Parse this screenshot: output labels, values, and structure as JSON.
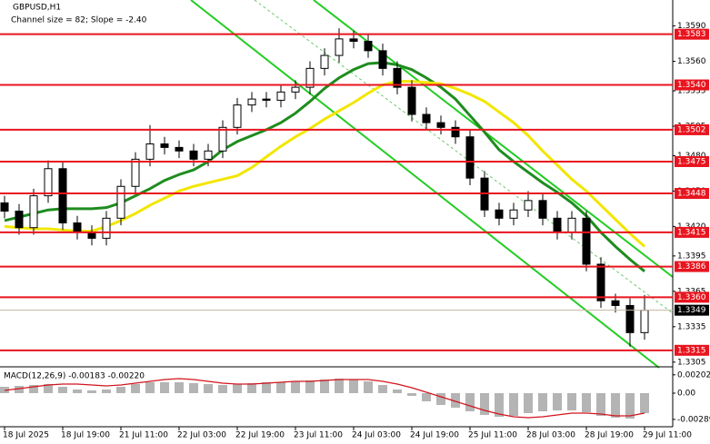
{
  "chart_data": [
    {
      "type": "candlestick",
      "title": "GBPUSD,H1",
      "subtitle": "Channel size = 82; Slope = -2.40",
      "categories": [
        "18 Jul 2025",
        null,
        null,
        null,
        "18 Jul 19:00",
        null,
        null,
        null,
        "21 Jul 11:00",
        null,
        null,
        null,
        "22 Jul 03:00",
        null,
        null,
        null,
        "22 Jul 19:00",
        null,
        null,
        null,
        "23 Jul 11:00",
        null,
        null,
        null,
        "24 Jul 03:00",
        null,
        null,
        null,
        "24 Jul 19:00",
        null,
        null,
        null,
        "25 Jul 11:00",
        null,
        null,
        null,
        "28 Jul 03:00",
        null,
        null,
        null,
        "28 Jul 19:00",
        null,
        null,
        null,
        "29 Jul 11:00"
      ],
      "open": [
        1.344,
        1.3433,
        1.3419,
        1.3446,
        1.3469,
        1.3423,
        1.3415,
        1.341,
        1.3427,
        1.3454,
        1.3477,
        1.349,
        1.3487,
        1.3484,
        1.3477,
        1.3484,
        1.3504,
        1.3523,
        1.3528,
        1.3527,
        1.3534,
        1.3538,
        1.3554,
        1.3565,
        1.3579,
        1.3577,
        1.3569,
        1.3554,
        1.3538,
        1.3515,
        1.3508,
        1.3504,
        1.3496,
        1.3461,
        1.3434,
        1.3427,
        1.3434,
        1.3442,
        1.3427,
        1.3415,
        1.3427,
        1.3388,
        1.3357,
        1.3353,
        1.333
      ],
      "high": [
        1.3446,
        1.3439,
        1.3452,
        1.3476,
        1.3475,
        1.3429,
        1.3421,
        1.3433,
        1.346,
        1.3483,
        1.3506,
        1.3496,
        1.3493,
        1.349,
        1.349,
        1.351,
        1.3529,
        1.3534,
        1.3534,
        1.354,
        1.3544,
        1.356,
        1.3571,
        1.3588,
        1.3586,
        1.3583,
        1.3575,
        1.356,
        1.3544,
        1.3521,
        1.3514,
        1.351,
        1.3502,
        1.3467,
        1.344,
        1.344,
        1.345,
        1.3448,
        1.3433,
        1.3433,
        1.3433,
        1.3394,
        1.3363,
        1.3359,
        1.3362
      ],
      "low": [
        1.3427,
        1.3413,
        1.3413,
        1.344,
        1.3417,
        1.3409,
        1.3404,
        1.3404,
        1.3421,
        1.3448,
        1.3471,
        1.3481,
        1.3478,
        1.3471,
        1.3471,
        1.3478,
        1.3498,
        1.3517,
        1.3521,
        1.3521,
        1.3528,
        1.3532,
        1.3548,
        1.3559,
        1.3571,
        1.3563,
        1.3548,
        1.3532,
        1.3509,
        1.3502,
        1.3498,
        1.349,
        1.3455,
        1.3428,
        1.3421,
        1.3421,
        1.3428,
        1.3421,
        1.3409,
        1.3409,
        1.3382,
        1.3351,
        1.3347,
        1.3318,
        1.3324
      ],
      "close": [
        1.3433,
        1.3419,
        1.3446,
        1.3469,
        1.3423,
        1.3415,
        1.341,
        1.3427,
        1.3454,
        1.3477,
        1.349,
        1.3487,
        1.3484,
        1.3477,
        1.3484,
        1.3504,
        1.3523,
        1.3528,
        1.3527,
        1.3534,
        1.3538,
        1.3554,
        1.3565,
        1.3579,
        1.3577,
        1.3569,
        1.3554,
        1.3538,
        1.3515,
        1.3508,
        1.3504,
        1.3496,
        1.3461,
        1.3434,
        1.3427,
        1.3434,
        1.3442,
        1.3427,
        1.3415,
        1.3427,
        1.3388,
        1.3357,
        1.3353,
        1.333,
        1.3349
      ],
      "series": [
        {
          "color": "#1e8c1e",
          "values": [
            1.3425,
            1.3428,
            1.3431,
            1.3434,
            1.3435,
            1.3435,
            1.3435,
            1.3436,
            1.344,
            1.3446,
            1.3452,
            1.3459,
            1.3464,
            1.3468,
            1.3475,
            1.3485,
            1.3492,
            1.3497,
            1.3502,
            1.3508,
            1.3516,
            1.3526,
            1.3537,
            1.3546,
            1.3553,
            1.3558,
            1.3559,
            1.3557,
            1.3553,
            1.3546,
            1.3538,
            1.3528,
            1.3514,
            1.35,
            1.3485,
            1.3475,
            1.3466,
            1.3457,
            1.3449,
            1.344,
            1.3429,
            1.3415,
            1.3403,
            1.3392,
            1.3382
          ]
        },
        {
          "color": "#f2e600",
          "values": [
            1.342,
            1.3419,
            1.3418,
            1.3418,
            1.3417,
            1.3416,
            1.3416,
            1.342,
            1.3425,
            1.3431,
            1.3438,
            1.3444,
            1.345,
            1.3454,
            1.3457,
            1.346,
            1.3463,
            1.347,
            1.3479,
            1.3488,
            1.3496,
            1.3503,
            1.3511,
            1.3518,
            1.3525,
            1.3533,
            1.354,
            1.3543,
            1.3543,
            1.3542,
            1.3541,
            1.3537,
            1.3532,
            1.3526,
            1.3517,
            1.3508,
            1.3497,
            1.3484,
            1.3472,
            1.346,
            1.345,
            1.3438,
            1.3426,
            1.3414,
            1.3403
          ]
        }
      ],
      "ylim": [
        1.3301,
        1.3612
      ],
      "yticks": [
        {
          "value": 1.359,
          "label": "1.3590"
        },
        {
          "value": 1.356,
          "label": "1.3560"
        },
        1.3535,
        1.3505,
        {
          "value": 1.348,
          "label": "1.3480"
        },
        {
          "value": 1.345,
          "label": "1.3450"
        },
        {
          "value": 1.342,
          "label": "1.3420"
        },
        1.3395,
        1.3365,
        1.3335,
        1.3305
      ],
      "levels": [
        1.3583,
        {
          "value": 1.354,
          "label": "1.3540"
        },
        1.3502,
        1.3475,
        1.3448,
        1.3415,
        1.3386,
        {
          "value": 1.336,
          "label": "1.3360"
        },
        1.3315
      ],
      "level_color": "#e8141e",
      "current_price": 1.3349
    },
    {
      "type": "macd",
      "title": "MACD(12,26,9) -0.00183 -0.00220",
      "histogram": {
        "color": "#b4b4b4",
        "values": [
          0.0007,
          0.0008,
          0.0009,
          0.001,
          0.0007,
          0.0004,
          0.0003,
          0.0004,
          0.0007,
          0.001,
          0.0012,
          0.0012,
          0.0012,
          0.0011,
          0.001,
          0.0009,
          0.001,
          0.0011,
          0.0012,
          0.0012,
          0.0013,
          0.0014,
          0.0015,
          0.0016,
          0.0015,
          0.0013,
          0.0009,
          0.0004,
          -0.0003,
          -0.0009,
          -0.0013,
          -0.0016,
          -0.002,
          -0.0024,
          -0.0026,
          -0.0025,
          -0.0022,
          -0.002,
          -0.0019,
          -0.0019,
          -0.0021,
          -0.0025,
          -0.0027,
          -0.0028,
          -0.0022
        ]
      },
      "signal": {
        "color": "#d2141e",
        "values": [
          0.0003,
          0.0005,
          0.0007,
          0.0009,
          0.001,
          0.001,
          0.0009,
          0.0008,
          0.0009,
          0.0011,
          0.0013,
          0.0015,
          0.0016,
          0.0015,
          0.0013,
          0.0011,
          0.001,
          0.001,
          0.0011,
          0.0012,
          0.0013,
          0.0013,
          0.0014,
          0.0015,
          0.0015,
          0.0015,
          0.0013,
          0.001,
          0.0006,
          0.0001,
          -0.0004,
          -0.0009,
          -0.0014,
          -0.0019,
          -0.0023,
          -0.0026,
          -0.0027,
          -0.0026,
          -0.0024,
          -0.0022,
          -0.0022,
          -0.0023,
          -0.0025,
          -0.0025,
          -0.0022
        ]
      },
      "ylim": [
        -0.0037,
        0.0027
      ],
      "yticks": [
        0.00202,
        {
          "value": 0,
          "label": "0.00"
        },
        -0.00289
      ]
    }
  ]
}
